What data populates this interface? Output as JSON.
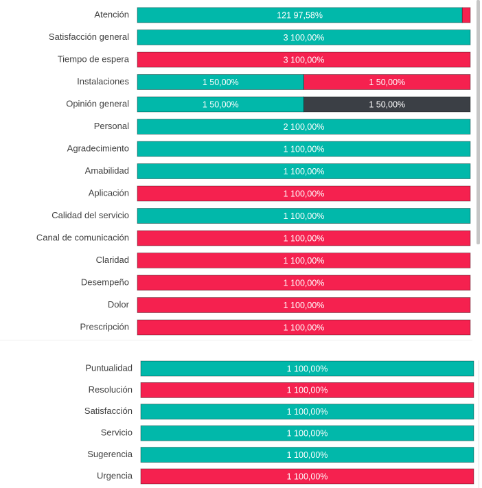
{
  "chart_data": [
    {
      "type": "bar",
      "orientation": "horizontal",
      "stacking": "percent",
      "categories": [
        "Atención",
        "Satisfacción general",
        "Tiempo de espera",
        "Instalaciones",
        "Opinión general",
        "Personal",
        "Agradecimiento",
        "Amabilidad",
        "Aplicación",
        "Calidad del servicio",
        "Canal de comunicación",
        "Claridad",
        "Desempeño",
        "Dolor",
        "Prescripción"
      ],
      "series": [
        {
          "color": "#01b8aa",
          "values": [
            97.58,
            100,
            0,
            50,
            50,
            100,
            100,
            100,
            0,
            100,
            0,
            0,
            0,
            0,
            0
          ],
          "value_labels": [
            "121 97,58%",
            "3 100,00%",
            null,
            "1 50,00%",
            "1 50,00%",
            "2 100,00%",
            "1 100,00%",
            "1 100,00%",
            null,
            "1 100,00%",
            null,
            null,
            null,
            null,
            null
          ]
        },
        {
          "color": "#f5214f",
          "values": [
            2.42,
            0,
            100,
            50,
            0,
            0,
            0,
            0,
            100,
            0,
            100,
            100,
            100,
            100,
            100
          ],
          "value_labels": [
            null,
            null,
            "3 100,00%",
            "1 50,00%",
            null,
            null,
            null,
            null,
            "1 100,00%",
            null,
            "1 100,00%",
            "1 100,00%",
            "1 100,00%",
            "1 100,00%",
            "1 100,00%"
          ]
        },
        {
          "color": "#3b3f45",
          "values": [
            0,
            0,
            0,
            0,
            50,
            0,
            0,
            0,
            0,
            0,
            0,
            0,
            0,
            0,
            0
          ],
          "value_labels": [
            null,
            null,
            null,
            null,
            "1 50,00%",
            null,
            null,
            null,
            null,
            null,
            null,
            null,
            null,
            null,
            null
          ]
        }
      ]
    },
    {
      "type": "bar",
      "orientation": "horizontal",
      "stacking": "percent",
      "categories": [
        "Puntualidad",
        "Resolución",
        "Satisfacción",
        "Servicio",
        "Sugerencia",
        "Urgencia"
      ],
      "series": [
        {
          "color": "#01b8aa",
          "values": [
            100,
            0,
            100,
            100,
            100,
            0
          ],
          "value_labels": [
            "1 100,00%",
            null,
            "1 100,00%",
            "1 100,00%",
            "1 100,00%",
            null
          ]
        },
        {
          "color": "#f5214f",
          "values": [
            0,
            100,
            0,
            0,
            0,
            100
          ],
          "value_labels": [
            null,
            "1 100,00%",
            null,
            null,
            null,
            "1 100,00%"
          ]
        }
      ]
    }
  ]
}
